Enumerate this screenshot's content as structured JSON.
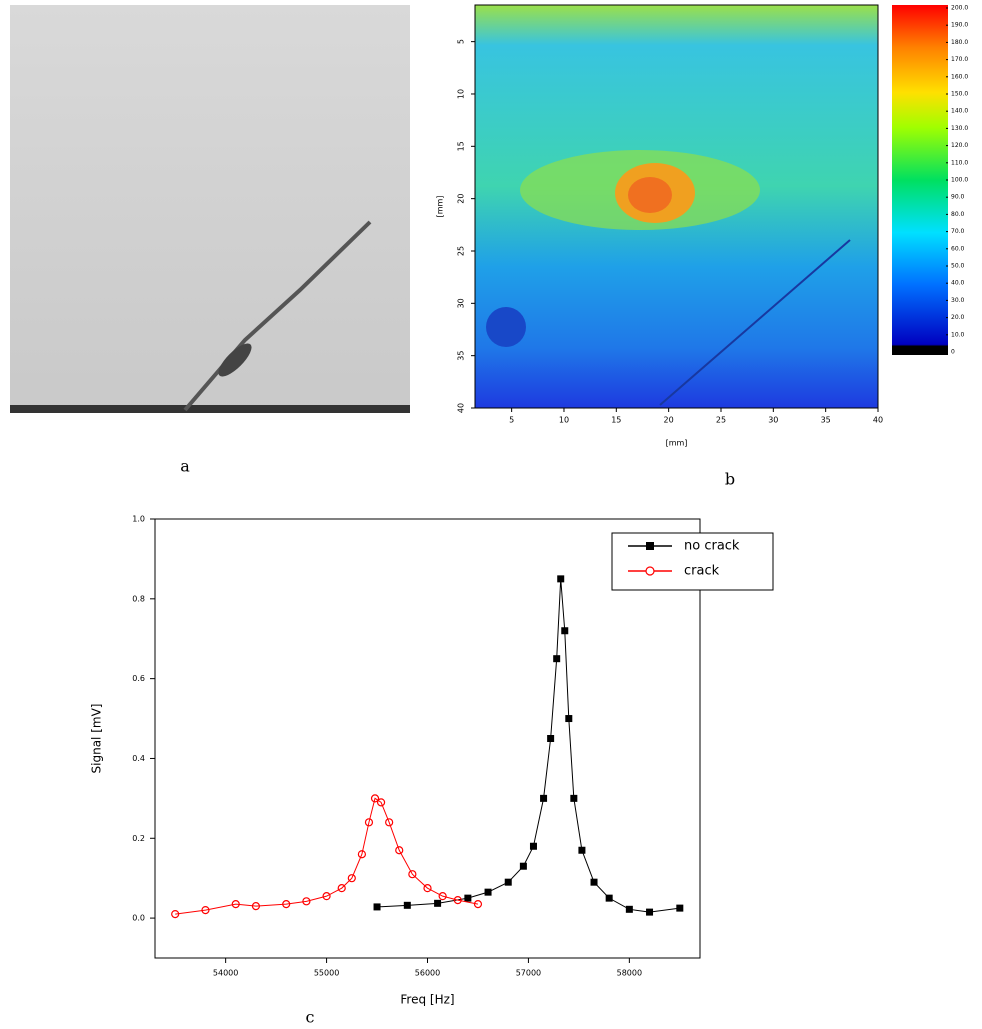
{
  "chart_data": [
    {
      "type": "image",
      "caption": "a"
    },
    {
      "type": "heatmap",
      "caption": "b",
      "xlabel": "[mm]",
      "ylabel": "[mm]",
      "xlim": [
        1.5,
        40
      ],
      "ylim": [
        1.5,
        40
      ],
      "xticks": [
        5,
        10,
        15,
        20,
        25,
        30,
        35,
        40
      ],
      "yticks": [
        5,
        10,
        15,
        20,
        25,
        30,
        35,
        40
      ],
      "clim": [
        0,
        200
      ],
      "cticks": [
        0,
        {
          "value": 10,
          "label": "10.0"
        },
        {
          "value": 20,
          "label": "20.0"
        },
        {
          "value": 30,
          "label": "30.0"
        },
        {
          "value": 40,
          "label": "40.0"
        },
        {
          "value": 50,
          "label": "50.0"
        },
        {
          "value": 60,
          "label": "60.0"
        },
        {
          "value": 70,
          "label": "70.0"
        },
        {
          "value": 80,
          "label": "80.0"
        },
        {
          "value": 90,
          "label": "90.0"
        },
        {
          "value": 100,
          "label": "100.0"
        },
        {
          "value": 110,
          "label": "110.0"
        },
        {
          "value": 120,
          "label": "120.0"
        },
        {
          "value": 130,
          "label": "130.0"
        },
        {
          "value": 140,
          "label": "140.0"
        },
        {
          "value": 150,
          "label": "150.0"
        },
        {
          "value": 160,
          "label": "160.0"
        },
        {
          "value": 170,
          "label": "170.0"
        },
        {
          "value": 180,
          "label": "180.0"
        },
        {
          "value": 190,
          "label": "190.0"
        },
        {
          "value": 200,
          "label": "200.0"
        }
      ]
    },
    {
      "type": "line",
      "caption": "c",
      "xlabel": "Freq [Hz]",
      "ylabel": "Signal [mV]",
      "xlim": [
        53300,
        58700
      ],
      "ylim": [
        -0.1,
        1.0
      ],
      "xticks": [
        54000,
        55000,
        56000,
        57000,
        58000
      ],
      "yticks": [
        {
          "value": 0.0,
          "label": "0.0"
        },
        0.2,
        0.4,
        0.6,
        0.8,
        {
          "value": 1.0,
          "label": "1.0"
        }
      ],
      "legend": "upper right",
      "series": [
        {
          "name": "no crack",
          "color": "#000000",
          "marker": "square",
          "x": [
            55500,
            55800,
            56100,
            56400,
            56600,
            56800,
            56950,
            57050,
            57150,
            57220,
            57280,
            57320,
            57360,
            57400,
            57450,
            57530,
            57650,
            57800,
            58000,
            58200,
            58500
          ],
          "values": [
            0.028,
            0.032,
            0.037,
            0.05,
            0.065,
            0.09,
            0.13,
            0.18,
            0.3,
            0.45,
            0.65,
            0.85,
            0.72,
            0.5,
            0.3,
            0.17,
            0.09,
            0.05,
            0.022,
            0.015,
            0.025
          ]
        },
        {
          "name": "crack",
          "color": "#ff0000",
          "marker": "circle",
          "x": [
            53500,
            53800,
            54100,
            54300,
            54600,
            54800,
            55000,
            55150,
            55250,
            55350,
            55420,
            55480,
            55540,
            55620,
            55720,
            55850,
            56000,
            56150,
            56300,
            56500
          ],
          "values": [
            0.01,
            0.02,
            0.035,
            0.03,
            0.035,
            0.042,
            0.055,
            0.075,
            0.1,
            0.16,
            0.24,
            0.3,
            0.29,
            0.24,
            0.17,
            0.11,
            0.075,
            0.055,
            0.045,
            0.035
          ]
        }
      ]
    }
  ]
}
